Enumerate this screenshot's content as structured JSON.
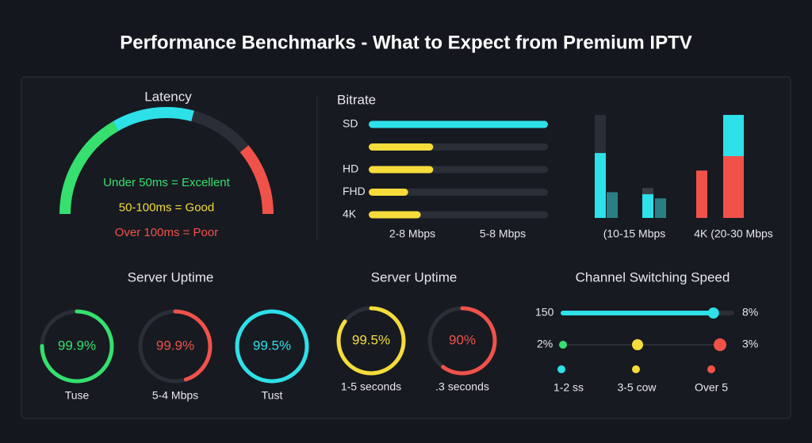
{
  "title": "Performance Benchmarks - What to Expect from Premium IPTV",
  "latency": {
    "title": "Latency",
    "segments": [
      {
        "color": "#35e06e",
        "span": 60
      },
      {
        "color": "#2ee0e8",
        "span": 45
      },
      {
        "color": "#2a2e36",
        "span": 35
      },
      {
        "color": "#f0524a",
        "span": 40
      }
    ],
    "legend": [
      {
        "label": "Under 50ms = Excellent",
        "color": "#35e06e"
      },
      {
        "label": "50-100ms = Good",
        "color": "#f5dc3a"
      },
      {
        "label": "Over 100ms = Poor",
        "color": "#f0524a"
      }
    ]
  },
  "bitrate": {
    "title": "Bitrate",
    "range": [
      0,
      100
    ],
    "rows": [
      {
        "label": "SD",
        "value": 100,
        "color": "#2ee0e8"
      },
      {
        "label": null,
        "value": 36,
        "color": "#f5dc3a"
      },
      {
        "label": "HD",
        "value": 36,
        "color": "#f5dc3a"
      },
      {
        "label": "FHD",
        "value": 22,
        "color": "#f5dc3a"
      },
      {
        "label": "4K",
        "value": 29,
        "color": "#f5dc3a"
      }
    ],
    "bar_labels": [
      "2-8 Mbps",
      "5-8 Mbps"
    ],
    "columns": {
      "ylim": [
        0,
        100
      ],
      "bars": [
        {
          "segments": [
            {
              "color": "#2a2e36",
              "value": 100
            }
          ]
        },
        {
          "segments": [
            {
              "color": "#2ee0e8",
              "value": 63
            }
          ]
        },
        {
          "segments": [
            {
              "color": "#2a7f86",
              "value": 25
            }
          ]
        },
        {
          "segments": [
            {
              "color": "#3a3f47",
              "value": 29
            }
          ]
        },
        {
          "segments": [
            {
              "color": "#2ee0e8",
              "value": 23
            }
          ]
        },
        {
          "segments": [
            {
              "color": "#2a7f86",
              "value": 19
            }
          ]
        },
        {
          "segments": [
            {
              "color": "#f0524a",
              "value": 46
            }
          ]
        },
        {
          "segments": [
            {
              "color": "#f0524a",
              "value": 60
            },
            {
              "color": "#2ee0e8",
              "value": 40
            }
          ]
        }
      ],
      "labels": [
        "(10-15 Mbps",
        "4K (20-30 Mbps"
      ]
    }
  },
  "uptime_left": {
    "title": "Server Uptime",
    "rings": [
      {
        "value": "99.9%",
        "label": "Tuse",
        "color": "#35e06e",
        "fill": 75
      },
      {
        "value": "99.9%",
        "label": "5-4 Mbps",
        "color": "#f0524a",
        "fill": 45
      },
      {
        "value": "99.5%",
        "label": "Tust",
        "color": "#2ee0e8",
        "fill": 100
      }
    ]
  },
  "uptime_right": {
    "title": "Server Uptime",
    "rings": [
      {
        "value": "99.5%",
        "label": "1-5 seconds",
        "color": "#f5dc3a",
        "fill": 85
      },
      {
        "value": "90%",
        "label": ".3 seconds",
        "color": "#f0524a",
        "fill": 60
      }
    ]
  },
  "channel": {
    "title": "Channel Switching Speed",
    "slider": {
      "min_label": "150",
      "max_label": "8%",
      "value": 88,
      "range": [
        0,
        100
      ],
      "color": "#2ee0e8"
    },
    "row": {
      "left": "2%",
      "right": "3%",
      "dots": [
        "#35e06e",
        "#f5dc3a",
        "#f0524a"
      ]
    },
    "options": [
      {
        "label": "1-2 ss",
        "color": "#2ee0e8"
      },
      {
        "label": "3-5 cow",
        "color": "#f5dc3a"
      },
      {
        "label": "Over 5",
        "color": "#f0524a"
      }
    ]
  }
}
